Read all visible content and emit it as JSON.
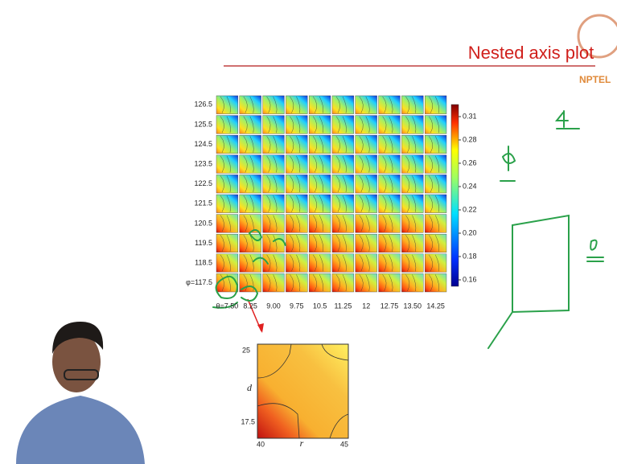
{
  "header": {
    "title": "Nested axis plot",
    "logo": "NPTEL"
  },
  "grid": {
    "row_labels": [
      "126.5",
      "125.5",
      "124.5",
      "123.5",
      "122.5",
      "121.5",
      "120.5",
      "119.5",
      "118.5",
      "φ=117.5"
    ],
    "col_labels": [
      "θ=7.50",
      "8.25",
      "9.00",
      "9.75",
      "10.5",
      "11.25",
      "12",
      "12.75",
      "13.50",
      "14.25"
    ]
  },
  "colorbar": {
    "ticks": [
      "0.31",
      "0.28",
      "0.26",
      "0.24",
      "0.22",
      "0.20",
      "0.18",
      "0.16"
    ]
  },
  "inset": {
    "y_ticks": [
      "25",
      "17.5"
    ],
    "y_label": "d",
    "x_ticks": [
      "40",
      "45"
    ],
    "x_label": "r"
  }
}
